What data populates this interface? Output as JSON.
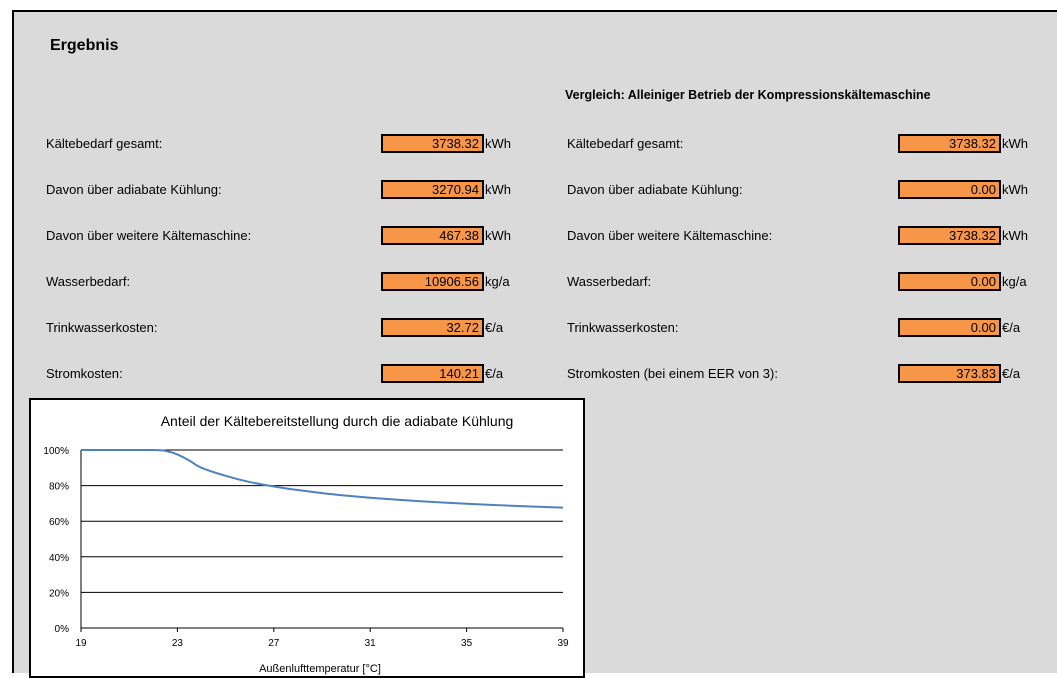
{
  "title": "Ergebnis",
  "comparison_heading": "Vergleich: Alleiniger Betrieb der Kompressionskältemaschine",
  "left_rows": [
    {
      "label": "Kältebedarf gesamt:",
      "value": "3738.32",
      "unit": "kWh"
    },
    {
      "label": "Davon über adiabate Kühlung:",
      "value": "3270.94",
      "unit": "kWh"
    },
    {
      "label": "Davon über weitere Kältemaschine:",
      "value": "467.38",
      "unit": "kWh"
    },
    {
      "label": "Wasserbedarf:",
      "value": "10906.56",
      "unit": "kg/a"
    },
    {
      "label": "Trinkwasserkosten:",
      "value": "32.72",
      "unit": "€/a"
    },
    {
      "label": "Stromkosten:",
      "value": "140.21",
      "unit": "€/a"
    }
  ],
  "right_rows": [
    {
      "label": "Kältebedarf gesamt:",
      "value": "3738.32",
      "unit": "kWh"
    },
    {
      "label": "Davon über adiabate Kühlung:",
      "value": "0.00",
      "unit": "kWh"
    },
    {
      "label": "Davon über weitere Kältemaschine:",
      "value": "3738.32",
      "unit": "kWh"
    },
    {
      "label": "Wasserbedarf:",
      "value": "0.00",
      "unit": "kg/a"
    },
    {
      "label": "Trinkwasserkosten:",
      "value": "0.00",
      "unit": "€/a"
    },
    {
      "label": "Stromkosten (bei einem EER von 3):",
      "value": "373.83",
      "unit": "€/a"
    }
  ],
  "colors": {
    "value_fill": "#f79646",
    "line": "#4f81bd",
    "panel": "#dadada"
  },
  "chart_data": {
    "type": "line",
    "title": "Anteil der Kältebereitstellung durch die adiabate Kühlung",
    "xlabel": "Außenlufttemperatur  [°C]",
    "ylabel": "",
    "x_ticks": [
      "19",
      "23",
      "27",
      "31",
      "35",
      "39"
    ],
    "y_ticks": [
      "0%",
      "20%",
      "40%",
      "60%",
      "80%",
      "100%"
    ],
    "xlim": [
      19,
      39
    ],
    "ylim": [
      0,
      100
    ],
    "grid": true,
    "series": [
      {
        "x": [
          19,
          20,
          21,
          22,
          22.5,
          23,
          23.5,
          24,
          25,
          26,
          27,
          28,
          29,
          30,
          31,
          32,
          33,
          34,
          35,
          36,
          37,
          38,
          39
        ],
        "y": [
          100,
          100,
          100,
          100,
          99.5,
          97.5,
          94,
          90,
          85.5,
          82,
          79.5,
          77.5,
          75.8,
          74.4,
          73.2,
          72.2,
          71.3,
          70.5,
          69.8,
          69.2,
          68.6,
          68.1,
          67.6
        ]
      }
    ]
  }
}
